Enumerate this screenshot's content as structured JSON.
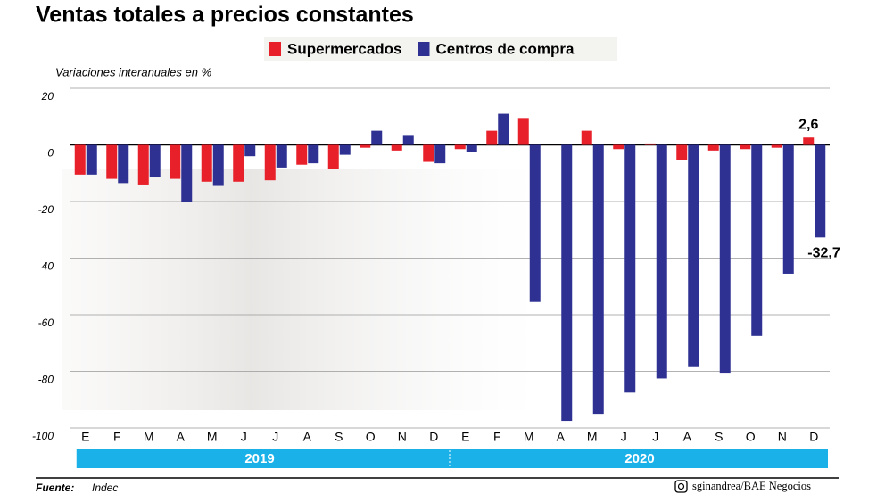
{
  "chart_data": {
    "type": "bar",
    "title": "Ventas totales a precios constantes",
    "ylabel": "Variaciones interanuales en %",
    "categories": [
      "E",
      "F",
      "M",
      "A",
      "M",
      "J",
      "J",
      "A",
      "S",
      "O",
      "N",
      "D",
      "E",
      "F",
      "M",
      "A",
      "M",
      "J",
      "J",
      "A",
      "S",
      "O",
      "N",
      "D"
    ],
    "groups": [
      "2019",
      "2020"
    ],
    "series": [
      {
        "name": "Supermercados",
        "color": "#e8202a",
        "values": [
          -10.5,
          -12,
          -14,
          -12,
          -13,
          -13,
          -12.5,
          -7,
          -8.5,
          -1,
          -2,
          -6,
          -1.5,
          5,
          9.5,
          0,
          5,
          -1.5,
          0.5,
          -5.5,
          -2,
          -1.5,
          -1,
          2.6
        ],
        "value_labels": [
          null,
          null,
          null,
          null,
          null,
          null,
          null,
          null,
          null,
          null,
          null,
          null,
          null,
          null,
          null,
          null,
          null,
          null,
          null,
          null,
          null,
          null,
          null,
          "2,6"
        ]
      },
      {
        "name": "Centros de compra",
        "color": "#2e3192",
        "values": [
          -10.5,
          -13.5,
          -11.5,
          -20,
          -14.5,
          -4,
          -8,
          -6.5,
          -3.5,
          5,
          3.5,
          -6.5,
          -2.5,
          11,
          -55.5,
          -97.5,
          -95,
          -87.5,
          -82.5,
          -78.5,
          -80.5,
          -67.5,
          -45.5,
          -32.7
        ],
        "value_labels": [
          null,
          null,
          null,
          null,
          null,
          null,
          null,
          null,
          null,
          null,
          null,
          null,
          null,
          null,
          null,
          null,
          null,
          null,
          null,
          null,
          null,
          null,
          null,
          "-32,7"
        ]
      }
    ],
    "ylim": [
      -100,
      20
    ],
    "yticks": [
      20,
      0,
      -20,
      -40,
      -60,
      -80,
      -100
    ],
    "grid": true,
    "source_label": "Fuente:",
    "source": "Indec",
    "credit": "sginandrea/BAE Negocios"
  }
}
